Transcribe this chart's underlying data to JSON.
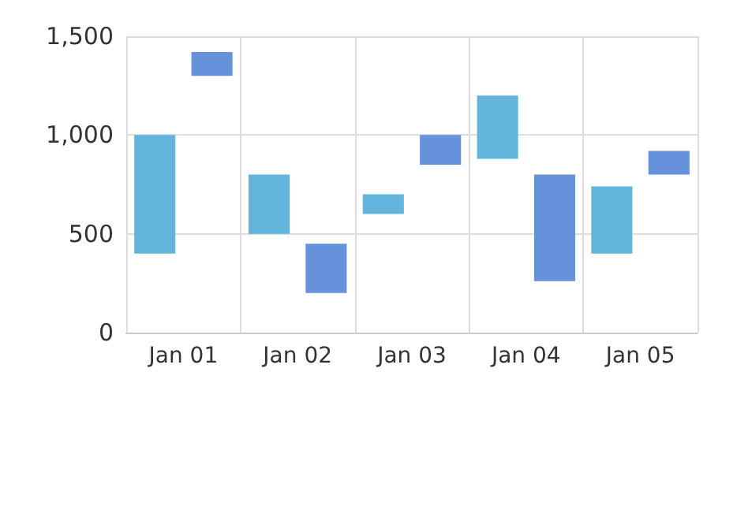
{
  "chart_data": {
    "type": "bar",
    "categories": [
      "Jan 01",
      "Jan 02",
      "Jan 03",
      "Jan 04",
      "Jan 05"
    ],
    "series": [
      {
        "color": "#63b5db",
        "base": [
          400,
          500,
          600,
          880,
          400
        ],
        "values": [
          600,
          300,
          100,
          320,
          340
        ]
      },
      {
        "color": "#6592db",
        "base": [
          1300,
          200,
          850,
          260,
          800
        ],
        "values": [
          120,
          250,
          150,
          540,
          120
        ]
      }
    ],
    "ylim": [
      0,
      1500
    ],
    "yticks": [
      0,
      500,
      {
        "value": 1000,
        "label": "1,000"
      },
      {
        "value": 1500,
        "label": "1,500"
      }
    ],
    "grid": true
  }
}
